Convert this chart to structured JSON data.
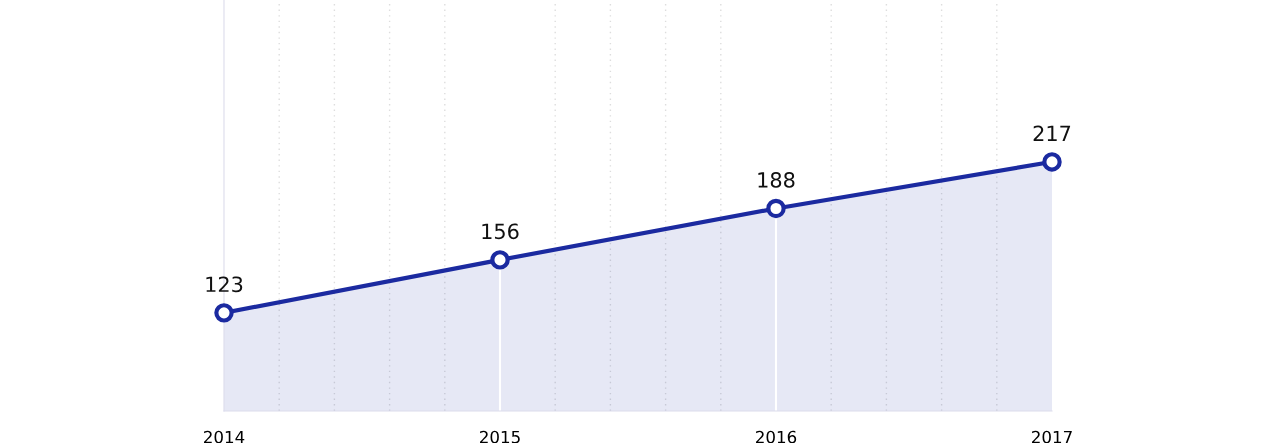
{
  "chart_data": {
    "type": "area",
    "categories": [
      "2014",
      "2015",
      "2016",
      "2017"
    ],
    "series": [
      {
        "color": "#1b2aa0",
        "values": [
          123,
          156,
          188,
          217
        ]
      }
    ],
    "data_labels": true,
    "marker": "circle",
    "line_style": "solid",
    "grid": "x",
    "legend": false,
    "tick_labels": "x"
  }
}
